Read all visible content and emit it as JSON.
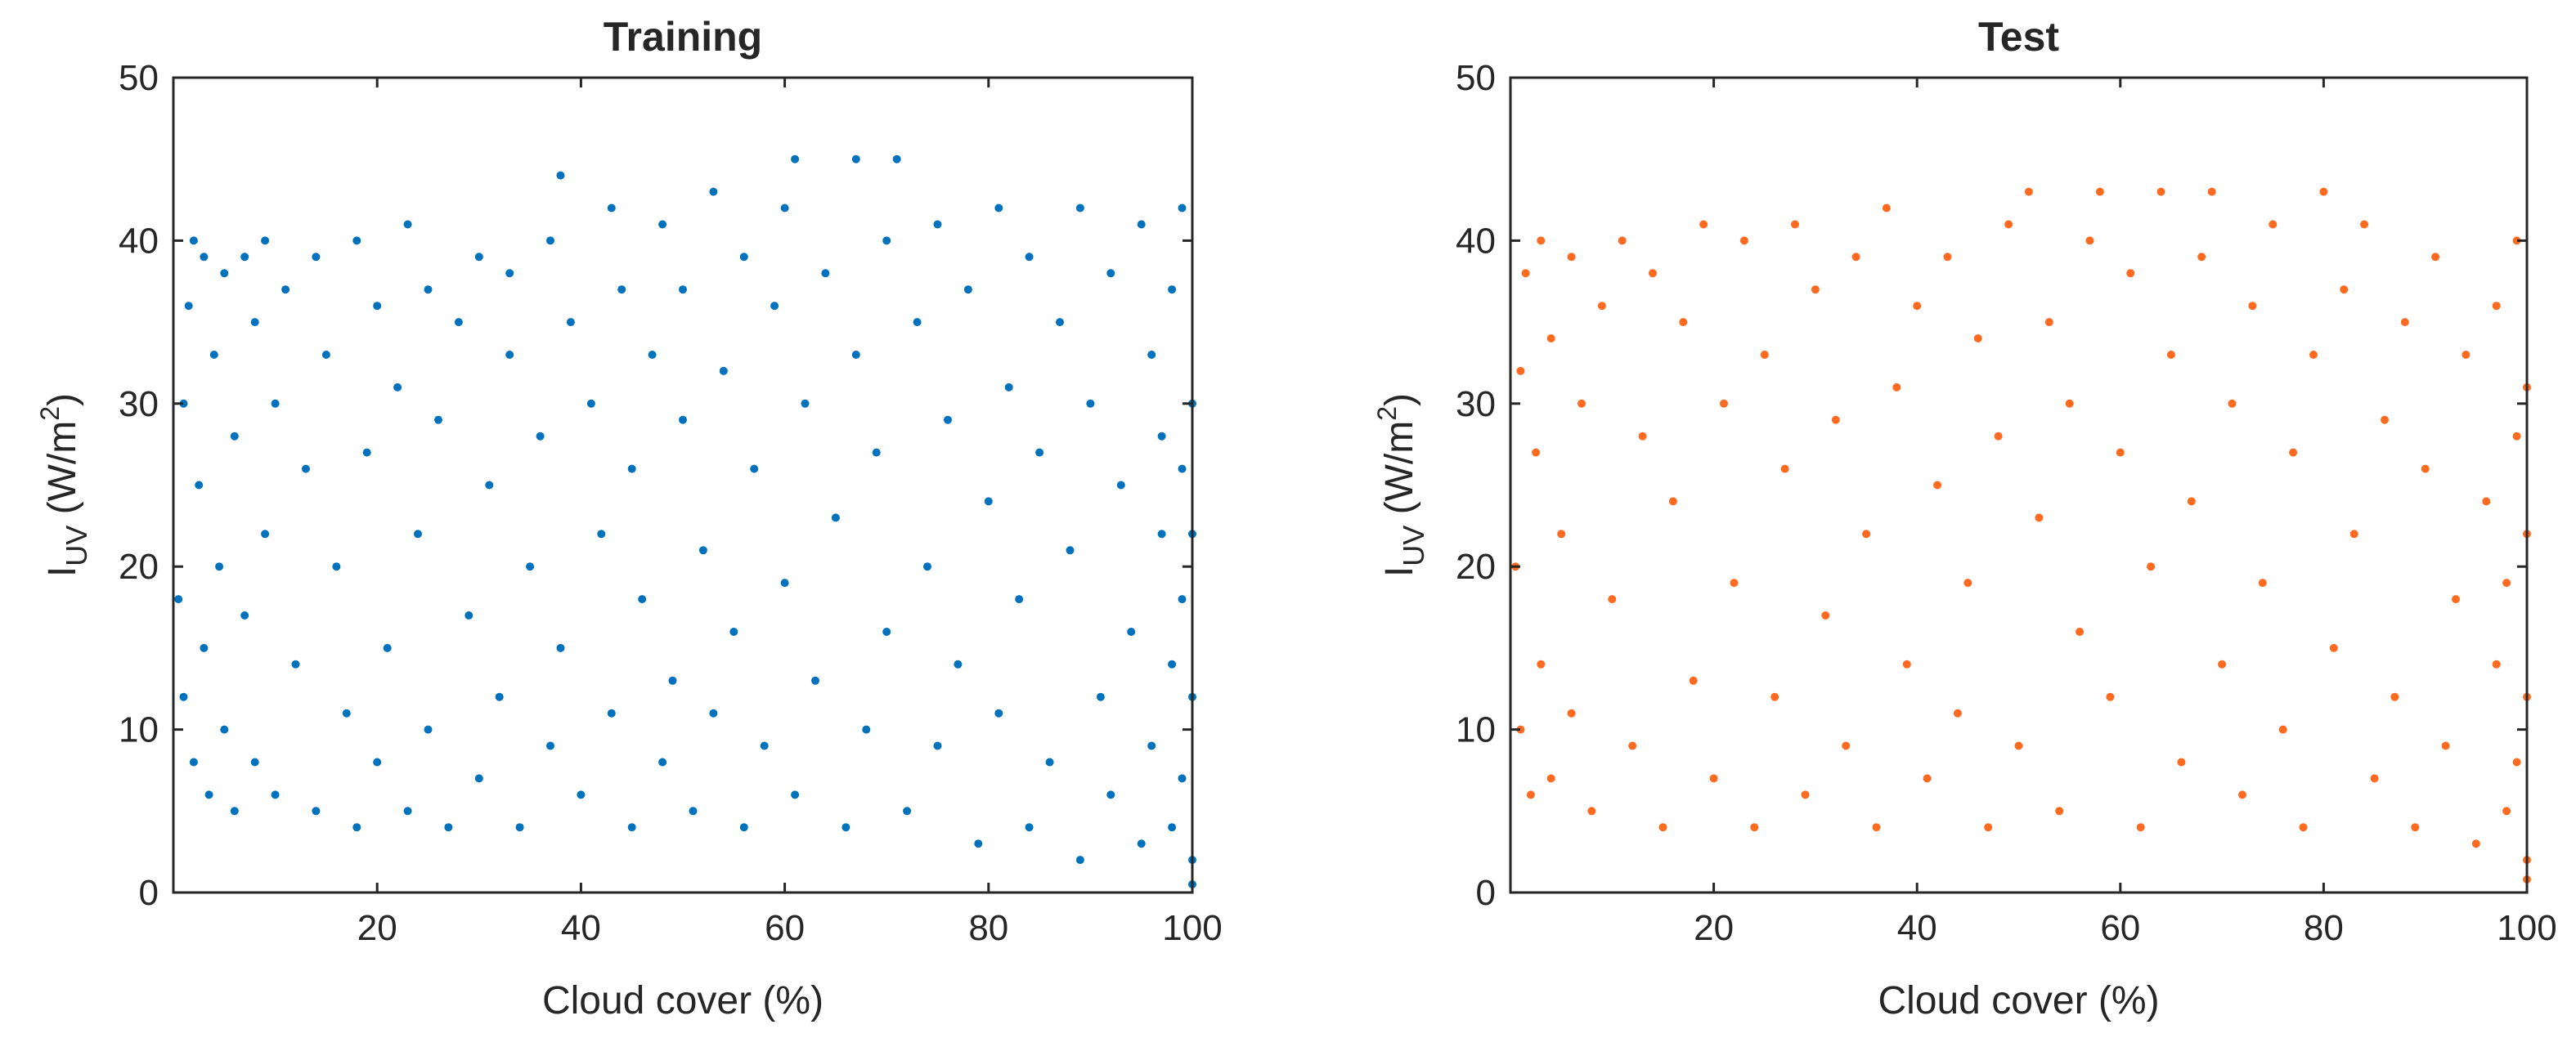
{
  "chart_data": [
    {
      "type": "scatter",
      "title": "Training",
      "xlabel": "Cloud cover (%)",
      "ylabel": "I_UV (W/m^2)",
      "ylabel_parts": {
        "symbol": "I",
        "subscript": "UV",
        "unit_open": " (W/m",
        "superscript": "2",
        "unit_close": ")"
      },
      "xlim": [
        0,
        100
      ],
      "ylim": [
        0,
        50
      ],
      "xticks": [
        20,
        40,
        60,
        80,
        100
      ],
      "yticks": [
        0,
        10,
        20,
        30,
        40,
        50
      ],
      "grid": false,
      "color": "#0072BD",
      "series": [
        {
          "points": [
            [
              0.5,
              18
            ],
            [
              1,
              30
            ],
            [
              1,
              12
            ],
            [
              1.5,
              36
            ],
            [
              2,
              40
            ],
            [
              2,
              8
            ],
            [
              2.5,
              25
            ],
            [
              3,
              39
            ],
            [
              3,
              15
            ],
            [
              3.5,
              6
            ],
            [
              4,
              33
            ],
            [
              4.5,
              20
            ],
            [
              5,
              38
            ],
            [
              5,
              10
            ],
            [
              6,
              28
            ],
            [
              6,
              5
            ],
            [
              7,
              39
            ],
            [
              7,
              17
            ],
            [
              8,
              35
            ],
            [
              8,
              8
            ],
            [
              9,
              40
            ],
            [
              9,
              22
            ],
            [
              10,
              30
            ],
            [
              10,
              6
            ],
            [
              11,
              37
            ],
            [
              12,
              14
            ],
            [
              13,
              26
            ],
            [
              14,
              39
            ],
            [
              14,
              5
            ],
            [
              15,
              33
            ],
            [
              16,
              20
            ],
            [
              17,
              11
            ],
            [
              18,
              40
            ],
            [
              18,
              4
            ],
            [
              19,
              27
            ],
            [
              20,
              36
            ],
            [
              20,
              8
            ],
            [
              21,
              15
            ],
            [
              22,
              31
            ],
            [
              23,
              41
            ],
            [
              23,
              5
            ],
            [
              24,
              22
            ],
            [
              25,
              37
            ],
            [
              25,
              10
            ],
            [
              26,
              29
            ],
            [
              27,
              4
            ],
            [
              28,
              35
            ],
            [
              29,
              17
            ],
            [
              30,
              39
            ],
            [
              30,
              7
            ],
            [
              31,
              25
            ],
            [
              32,
              12
            ],
            [
              33,
              38
            ],
            [
              33,
              33
            ],
            [
              34,
              4
            ],
            [
              35,
              20
            ],
            [
              36,
              28
            ],
            [
              37,
              40
            ],
            [
              37,
              9
            ],
            [
              38,
              15
            ],
            [
              38,
              44
            ],
            [
              39,
              35
            ],
            [
              40,
              6
            ],
            [
              41,
              30
            ],
            [
              42,
              22
            ],
            [
              43,
              42
            ],
            [
              43,
              11
            ],
            [
              44,
              37
            ],
            [
              45,
              4
            ],
            [
              45,
              26
            ],
            [
              46,
              18
            ],
            [
              47,
              33
            ],
            [
              48,
              41
            ],
            [
              48,
              8
            ],
            [
              49,
              13
            ],
            [
              50,
              29
            ],
            [
              50,
              37
            ],
            [
              51,
              5
            ],
            [
              52,
              21
            ],
            [
              53,
              43
            ],
            [
              53,
              11
            ],
            [
              54,
              32
            ],
            [
              55,
              16
            ],
            [
              56,
              39
            ],
            [
              56,
              4
            ],
            [
              57,
              26
            ],
            [
              58,
              9
            ],
            [
              59,
              36
            ],
            [
              60,
              42
            ],
            [
              60,
              19
            ],
            [
              61,
              45
            ],
            [
              61,
              6
            ],
            [
              62,
              30
            ],
            [
              63,
              13
            ],
            [
              64,
              38
            ],
            [
              65,
              23
            ],
            [
              66,
              4
            ],
            [
              67,
              45
            ],
            [
              67,
              33
            ],
            [
              68,
              10
            ],
            [
              69,
              27
            ],
            [
              70,
              40
            ],
            [
              70,
              16
            ],
            [
              71,
              45
            ],
            [
              72,
              5
            ],
            [
              73,
              35
            ],
            [
              74,
              20
            ],
            [
              75,
              41
            ],
            [
              75,
              9
            ],
            [
              76,
              29
            ],
            [
              77,
              14
            ],
            [
              78,
              37
            ],
            [
              79,
              3
            ],
            [
              80,
              24
            ],
            [
              81,
              42
            ],
            [
              81,
              11
            ],
            [
              82,
              31
            ],
            [
              83,
              18
            ],
            [
              84,
              39
            ],
            [
              84,
              4
            ],
            [
              85,
              27
            ],
            [
              86,
              8
            ],
            [
              87,
              35
            ],
            [
              88,
              21
            ],
            [
              89,
              42
            ],
            [
              89,
              2
            ],
            [
              90,
              30
            ],
            [
              91,
              12
            ],
            [
              92,
              38
            ],
            [
              92,
              6
            ],
            [
              93,
              25
            ],
            [
              94,
              16
            ],
            [
              95,
              41
            ],
            [
              95,
              3
            ],
            [
              96,
              33
            ],
            [
              96,
              9
            ],
            [
              97,
              22
            ],
            [
              97,
              28
            ],
            [
              98,
              4
            ],
            [
              98,
              14
            ],
            [
              98,
              37
            ],
            [
              99,
              18
            ],
            [
              99,
              7
            ],
            [
              99,
              26
            ],
            [
              99,
              42
            ],
            [
              100,
              30
            ],
            [
              100,
              2
            ],
            [
              100,
              12
            ],
            [
              100,
              22
            ],
            [
              100,
              0.5
            ]
          ]
        }
      ]
    },
    {
      "type": "scatter",
      "title": "Test",
      "xlabel": "Cloud cover (%)",
      "ylabel": "I_UV (W/m^2)",
      "ylabel_parts": {
        "symbol": "I",
        "subscript": "UV",
        "unit_open": " (W/m",
        "superscript": "2",
        "unit_close": ")"
      },
      "xlim": [
        0,
        100
      ],
      "ylim": [
        0,
        50
      ],
      "xticks": [
        20,
        40,
        60,
        80,
        100
      ],
      "yticks": [
        0,
        10,
        20,
        30,
        40,
        50
      ],
      "grid": false,
      "color": "#FF6A21",
      "series": [
        {
          "points": [
            [
              0.5,
              20
            ],
            [
              1,
              32
            ],
            [
              1,
              10
            ],
            [
              1.5,
              38
            ],
            [
              2,
              6
            ],
            [
              2.5,
              27
            ],
            [
              3,
              40
            ],
            [
              3,
              14
            ],
            [
              4,
              34
            ],
            [
              4,
              7
            ],
            [
              5,
              22
            ],
            [
              6,
              39
            ],
            [
              6,
              11
            ],
            [
              7,
              30
            ],
            [
              8,
              5
            ],
            [
              9,
              36
            ],
            [
              10,
              18
            ],
            [
              11,
              40
            ],
            [
              12,
              9
            ],
            [
              13,
              28
            ],
            [
              14,
              38
            ],
            [
              15,
              4
            ],
            [
              16,
              24
            ],
            [
              17,
              35
            ],
            [
              18,
              13
            ],
            [
              19,
              41
            ],
            [
              20,
              7
            ],
            [
              21,
              30
            ],
            [
              22,
              19
            ],
            [
              23,
              40
            ],
            [
              24,
              4
            ],
            [
              25,
              33
            ],
            [
              26,
              12
            ],
            [
              27,
              26
            ],
            [
              28,
              41
            ],
            [
              29,
              6
            ],
            [
              30,
              37
            ],
            [
              31,
              17
            ],
            [
              32,
              29
            ],
            [
              33,
              9
            ],
            [
              34,
              39
            ],
            [
              35,
              22
            ],
            [
              36,
              4
            ],
            [
              37,
              42
            ],
            [
              38,
              31
            ],
            [
              39,
              14
            ],
            [
              40,
              36
            ],
            [
              41,
              7
            ],
            [
              42,
              25
            ],
            [
              43,
              39
            ],
            [
              44,
              11
            ],
            [
              45,
              19
            ],
            [
              46,
              34
            ],
            [
              47,
              4
            ],
            [
              48,
              28
            ],
            [
              49,
              41
            ],
            [
              50,
              9
            ],
            [
              51,
              43
            ],
            [
              52,
              23
            ],
            [
              53,
              35
            ],
            [
              54,
              5
            ],
            [
              55,
              30
            ],
            [
              56,
              16
            ],
            [
              57,
              40
            ],
            [
              58,
              43
            ],
            [
              59,
              12
            ],
            [
              60,
              27
            ],
            [
              61,
              38
            ],
            [
              62,
              4
            ],
            [
              63,
              20
            ],
            [
              64,
              43
            ],
            [
              65,
              33
            ],
            [
              66,
              8
            ],
            [
              67,
              24
            ],
            [
              68,
              39
            ],
            [
              69,
              43
            ],
            [
              70,
              14
            ],
            [
              71,
              30
            ],
            [
              72,
              6
            ],
            [
              73,
              36
            ],
            [
              74,
              19
            ],
            [
              75,
              41
            ],
            [
              76,
              10
            ],
            [
              77,
              27
            ],
            [
              78,
              4
            ],
            [
              79,
              33
            ],
            [
              80,
              43
            ],
            [
              81,
              15
            ],
            [
              82,
              37
            ],
            [
              83,
              22
            ],
            [
              84,
              41
            ],
            [
              85,
              7
            ],
            [
              86,
              29
            ],
            [
              87,
              12
            ],
            [
              88,
              35
            ],
            [
              89,
              4
            ],
            [
              90,
              26
            ],
            [
              91,
              39
            ],
            [
              92,
              9
            ],
            [
              93,
              18
            ],
            [
              94,
              33
            ],
            [
              95,
              3
            ],
            [
              96,
              24
            ],
            [
              97,
              14
            ],
            [
              97,
              36
            ],
            [
              98,
              5
            ],
            [
              98,
              19
            ],
            [
              99,
              28
            ],
            [
              99,
              8
            ],
            [
              99,
              40
            ],
            [
              100,
              12
            ],
            [
              100,
              2
            ],
            [
              100,
              22
            ],
            [
              100,
              31
            ],
            [
              100,
              0.8
            ]
          ]
        }
      ]
    }
  ]
}
